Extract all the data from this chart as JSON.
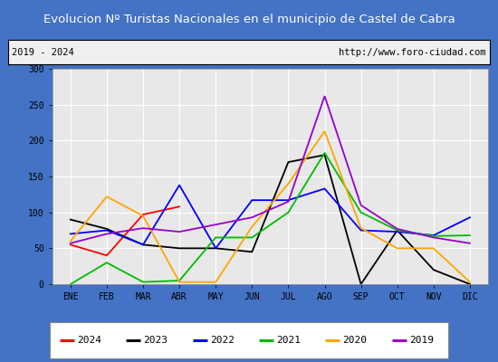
{
  "title": "Evolucion Nº Turistas Nacionales en el municipio de Castel de Cabra",
  "title_color": "#ffffff",
  "title_bg_color": "#4472c4",
  "subtitle_left": "2019 - 2024",
  "subtitle_right": "http://www.foro-ciudad.com",
  "months": [
    "ENE",
    "FEB",
    "MAR",
    "ABR",
    "MAY",
    "JUN",
    "JUL",
    "AGO",
    "SEP",
    "OCT",
    "NOV",
    "DIC"
  ],
  "ylim": [
    0,
    300
  ],
  "yticks": [
    0,
    50,
    100,
    150,
    200,
    250,
    300
  ],
  "series": {
    "2024": {
      "color": "#ff0000",
      "values": [
        55,
        40,
        97,
        108,
        null,
        null,
        null,
        null,
        null,
        null,
        null,
        null
      ]
    },
    "2023": {
      "color": "#000000",
      "values": [
        90,
        77,
        55,
        50,
        50,
        45,
        170,
        180,
        0,
        75,
        20,
        0
      ]
    },
    "2022": {
      "color": "#0000ff",
      "values": [
        70,
        75,
        55,
        138,
        50,
        117,
        117,
        133,
        75,
        73,
        68,
        93
      ]
    },
    "2021": {
      "color": "#00bb00",
      "values": [
        0,
        30,
        3,
        5,
        65,
        65,
        100,
        183,
        100,
        75,
        67,
        68
      ]
    },
    "2020": {
      "color": "#ffa500",
      "values": [
        60,
        122,
        95,
        3,
        3,
        80,
        140,
        213,
        78,
        50,
        50,
        3
      ]
    },
    "2019": {
      "color": "#9900cc",
      "values": [
        57,
        70,
        78,
        73,
        83,
        93,
        115,
        262,
        110,
        77,
        65,
        57
      ]
    }
  },
  "legend_order": [
    "2024",
    "2023",
    "2022",
    "2021",
    "2020",
    "2019"
  ],
  "bg_plot": "#e8e8e8",
  "grid_color": "#ffffff",
  "border_color": "#4472c4",
  "fig_width": 5.5,
  "fig_height": 4.0,
  "dpi": 100
}
